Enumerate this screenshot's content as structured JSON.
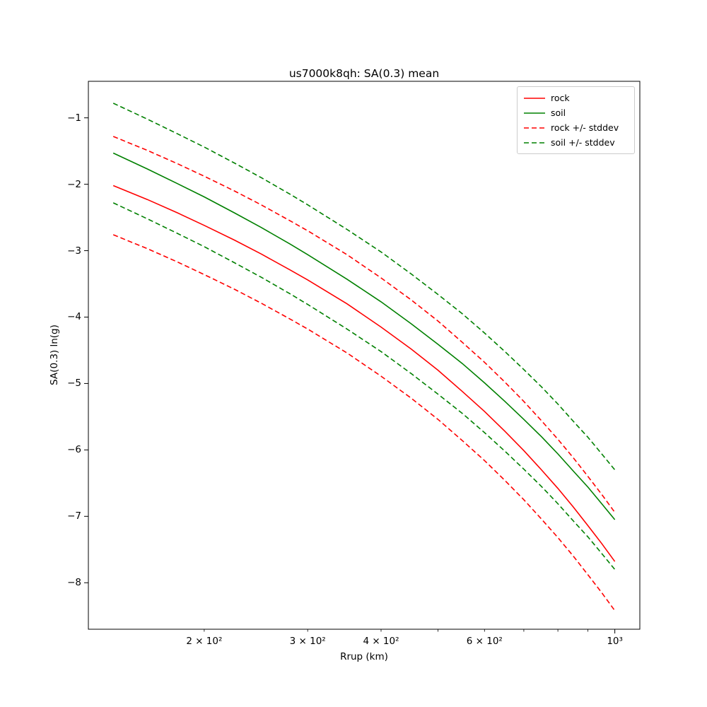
{
  "figure": {
    "title": "us7000k8qh: SA(0.3) mean",
    "xlabel": "Rrup (km)",
    "ylabel": "SA(0.3) ln(g)"
  },
  "chart_data": {
    "type": "line",
    "title": "us7000k8qh: SA(0.3) mean",
    "xlabel": "Rrup (km)",
    "ylabel": "SA(0.3) ln(g)",
    "xscale": "log",
    "yscale": "linear",
    "xlim": [
      127,
      1103
    ],
    "ylim": [
      -8.7,
      -0.45
    ],
    "grid": false,
    "legend_position": "upper right",
    "colors": {
      "rock": "#ff0000",
      "soil": "#008000",
      "frame": "#000000"
    },
    "x": [
      140,
      160,
      180,
      200,
      225,
      250,
      280,
      300,
      350,
      400,
      450,
      500,
      550,
      600,
      650,
      700,
      750,
      800,
      850,
      900,
      950,
      1000
    ],
    "series": [
      {
        "id": "rock-mean",
        "name": "rock",
        "color": "#ff0000",
        "dash": false,
        "y": [
          -2.02,
          -2.23,
          -2.43,
          -2.62,
          -2.84,
          -3.05,
          -3.29,
          -3.44,
          -3.8,
          -4.15,
          -4.48,
          -4.8,
          -5.12,
          -5.42,
          -5.72,
          -6.01,
          -6.3,
          -6.58,
          -6.86,
          -7.14,
          -7.41,
          -7.68
        ]
      },
      {
        "id": "soil-mean",
        "name": "soil",
        "color": "#008000",
        "dash": false,
        "y": [
          -1.53,
          -1.77,
          -1.99,
          -2.19,
          -2.43,
          -2.65,
          -2.9,
          -3.06,
          -3.43,
          -3.77,
          -4.1,
          -4.41,
          -4.7,
          -4.99,
          -5.27,
          -5.54,
          -5.8,
          -6.06,
          -6.32,
          -6.56,
          -6.81,
          -7.05
        ]
      },
      {
        "id": "rock-plus-stddev",
        "name": "rock +/- stddev (upper)",
        "color": "#ff0000",
        "dash": true,
        "y": [
          -1.28,
          -1.49,
          -1.69,
          -1.88,
          -2.1,
          -2.31,
          -2.55,
          -2.7,
          -3.06,
          -3.41,
          -3.74,
          -4.06,
          -4.38,
          -4.68,
          -4.98,
          -5.27,
          -5.56,
          -5.84,
          -6.12,
          -6.4,
          -6.67,
          -6.94
        ]
      },
      {
        "id": "rock-minus-stddev",
        "name": "rock +/- stddev (lower)",
        "color": "#ff0000",
        "dash": true,
        "y": [
          -2.76,
          -2.97,
          -3.17,
          -3.36,
          -3.58,
          -3.79,
          -4.03,
          -4.18,
          -4.54,
          -4.89,
          -5.22,
          -5.54,
          -5.86,
          -6.16,
          -6.46,
          -6.75,
          -7.04,
          -7.32,
          -7.6,
          -7.88,
          -8.15,
          -8.42
        ]
      },
      {
        "id": "soil-plus-stddev",
        "name": "soil +/- stddev (upper)",
        "color": "#008000",
        "dash": true,
        "y": [
          -0.78,
          -1.02,
          -1.24,
          -1.44,
          -1.68,
          -1.9,
          -2.15,
          -2.31,
          -2.68,
          -3.02,
          -3.35,
          -3.66,
          -3.95,
          -4.24,
          -4.52,
          -4.79,
          -5.05,
          -5.31,
          -5.57,
          -5.81,
          -6.06,
          -6.3
        ]
      },
      {
        "id": "soil-minus-stddev",
        "name": "soil +/- stddev (lower)",
        "color": "#008000",
        "dash": true,
        "y": [
          -2.28,
          -2.52,
          -2.74,
          -2.94,
          -3.18,
          -3.4,
          -3.65,
          -3.81,
          -4.18,
          -4.52,
          -4.85,
          -5.16,
          -5.45,
          -5.74,
          -6.02,
          -6.29,
          -6.55,
          -6.81,
          -7.07,
          -7.31,
          -7.56,
          -7.8
        ]
      }
    ],
    "stddev": {
      "rock": 0.74,
      "soil": 0.75
    },
    "xticks": {
      "values": [
        200,
        300,
        400,
        500,
        600,
        700,
        800,
        900,
        1000
      ],
      "labels": [
        "2 × 10²",
        "3 × 10²",
        "4 × 10²",
        "",
        "6 × 10²",
        "",
        "",
        "",
        "10³"
      ],
      "major": [
        false,
        false,
        false,
        false,
        false,
        false,
        false,
        false,
        true
      ]
    },
    "yticks": {
      "values": [
        -1,
        -2,
        -3,
        -4,
        -5,
        -6,
        -7,
        -8
      ],
      "labels": [
        "−1",
        "−2",
        "−3",
        "−4",
        "−5",
        "−6",
        "−7",
        "−8"
      ]
    },
    "legend": [
      {
        "label": "rock",
        "color": "#ff0000",
        "dash": false
      },
      {
        "label": "soil",
        "color": "#008000",
        "dash": false
      },
      {
        "label": "rock +/- stddev",
        "color": "#ff0000",
        "dash": true
      },
      {
        "label": "soil +/- stddev",
        "color": "#008000",
        "dash": true
      }
    ]
  }
}
